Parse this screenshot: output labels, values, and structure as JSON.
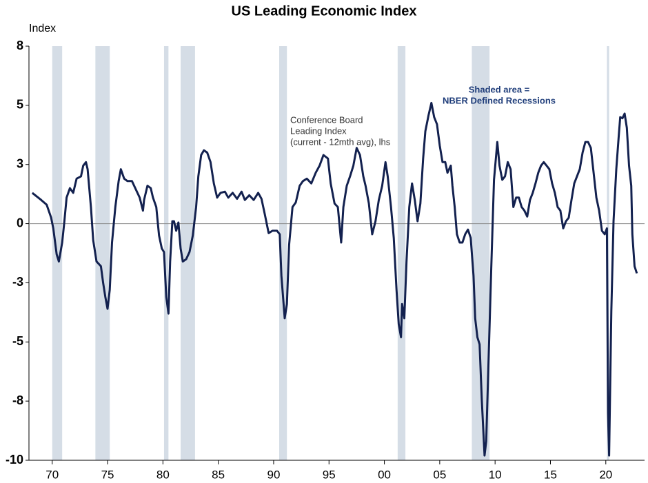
{
  "chart_data": {
    "type": "line",
    "title": "US Leading Economic Index",
    "y_label": "Index",
    "annotations": {
      "series_note": [
        "Conference Board",
        "Leading Index",
        "(current - 12mth avg), lhs"
      ],
      "shading_note": [
        "Shaded area =",
        "NBER Defined Recessions"
      ]
    },
    "xlim": [
      1967.9,
      2023.5
    ],
    "xticks": [
      {
        "value": 1970,
        "label": "70"
      },
      {
        "value": 1975,
        "label": "75"
      },
      {
        "value": 1980,
        "label": "80"
      },
      {
        "value": 1985,
        "label": "85"
      },
      {
        "value": 1990,
        "label": "90"
      },
      {
        "value": 1995,
        "label": "95"
      },
      {
        "value": 2000,
        "label": "00"
      },
      {
        "value": 2005,
        "label": "05"
      },
      {
        "value": 2010,
        "label": "10"
      },
      {
        "value": 2015,
        "label": "15"
      },
      {
        "value": 2020,
        "label": "20"
      }
    ],
    "ylim": [
      -10,
      7.5
    ],
    "yticks": [
      {
        "value": 7.5,
        "label": "8"
      },
      5,
      {
        "value": 2.5,
        "label": "3"
      },
      0,
      {
        "value": -2.5,
        "label": "-3"
      },
      -5,
      {
        "value": -7.5,
        "label": "-8"
      },
      -10
    ],
    "zero_line": true,
    "recession_color": "#d5dde6",
    "recessions": [
      [
        1970.0,
        1970.9
      ],
      [
        1973.9,
        1975.2
      ],
      [
        1980.1,
        1980.5
      ],
      [
        1981.6,
        1982.9
      ],
      [
        1990.5,
        1991.2
      ],
      [
        2001.2,
        2001.9
      ],
      [
        2007.9,
        2009.5
      ],
      [
        2020.1,
        2020.3
      ]
    ],
    "series": [
      {
        "name": "Conference Board Leading Index",
        "color": "#13214f",
        "x": [
          1968.2,
          1969.0,
          1969.5,
          1969.9,
          1970.1,
          1970.4,
          1970.6,
          1970.9,
          1971.1,
          1971.3,
          1971.6,
          1971.9,
          1972.2,
          1972.6,
          1972.8,
          1973.05,
          1973.2,
          1973.5,
          1973.7,
          1974.0,
          1974.4,
          1974.6,
          1974.8,
          1975.0,
          1975.2,
          1975.4,
          1975.7,
          1976.0,
          1976.2,
          1976.5,
          1976.8,
          1977.2,
          1977.6,
          1977.9,
          1978.2,
          1978.3,
          1978.6,
          1978.9,
          1979.1,
          1979.4,
          1979.65,
          1979.9,
          1980.1,
          1980.3,
          1980.5,
          1980.65,
          1980.85,
          1981.0,
          1981.2,
          1981.4,
          1981.6,
          1981.8,
          1982.1,
          1982.4,
          1982.7,
          1983.0,
          1983.2,
          1983.45,
          1983.7,
          1984.0,
          1984.3,
          1984.6,
          1984.9,
          1985.2,
          1985.6,
          1985.9,
          1986.3,
          1986.7,
          1987.1,
          1987.4,
          1987.8,
          1988.2,
          1988.6,
          1988.9,
          1989.2,
          1989.55,
          1989.9,
          1990.3,
          1990.55,
          1990.7,
          1991.0,
          1991.2,
          1991.4,
          1991.7,
          1992.0,
          1992.35,
          1992.65,
          1993.0,
          1993.4,
          1993.8,
          1994.15,
          1994.5,
          1994.9,
          1995.15,
          1995.5,
          1995.8,
          1996.1,
          1996.3,
          1996.6,
          1996.9,
          1997.2,
          1997.5,
          1997.8,
          1998.1,
          1998.3,
          1998.6,
          1998.9,
          1999.2,
          1999.5,
          1999.8,
          2000.1,
          2000.3,
          2000.6,
          2000.85,
          2001.1,
          2001.3,
          2001.5,
          2001.6,
          2001.8,
          2002.0,
          2002.25,
          2002.5,
          2002.75,
          2003.0,
          2003.25,
          2003.5,
          2003.7,
          2004.0,
          2004.25,
          2004.5,
          2004.75,
          2005.0,
          2005.25,
          2005.5,
          2005.7,
          2006.0,
          2006.15,
          2006.35,
          2006.55,
          2006.8,
          2007.05,
          2007.3,
          2007.55,
          2007.8,
          2008.05,
          2008.2,
          2008.4,
          2008.6,
          2008.8,
          2009.05,
          2009.2,
          2009.4,
          2009.65,
          2009.9,
          2010.2,
          2010.4,
          2010.65,
          2010.9,
          2011.15,
          2011.4,
          2011.65,
          2011.9,
          2012.15,
          2012.4,
          2012.65,
          2012.9,
          2013.15,
          2013.4,
          2013.65,
          2013.9,
          2014.15,
          2014.4,
          2014.65,
          2014.9,
          2015.15,
          2015.4,
          2015.65,
          2015.9,
          2016.15,
          2016.4,
          2016.65,
          2016.9,
          2017.15,
          2017.4,
          2017.65,
          2017.9,
          2018.15,
          2018.4,
          2018.65,
          2018.9,
          2019.15,
          2019.4,
          2019.65,
          2019.9,
          2020.1,
          2020.2,
          2020.3,
          2020.5,
          2020.7,
          2020.95,
          2021.15,
          2021.3,
          2021.5,
          2021.7,
          2021.9,
          2022.1,
          2022.3,
          2022.4,
          2022.6,
          2022.8
        ],
        "values": [
          1.3,
          1.0,
          0.8,
          0.26,
          -0.2,
          -1.3,
          -1.6,
          -0.8,
          0.1,
          1.1,
          1.5,
          1.3,
          1.9,
          2.0,
          2.45,
          2.6,
          2.3,
          0.7,
          -0.7,
          -1.6,
          -1.8,
          -2.5,
          -3.1,
          -3.6,
          -2.8,
          -0.8,
          0.7,
          1.8,
          2.3,
          1.9,
          1.8,
          1.8,
          1.4,
          1.1,
          0.55,
          1.0,
          1.6,
          1.5,
          1.1,
          0.7,
          -0.5,
          -1.05,
          -1.2,
          -3.1,
          -3.8,
          -1.6,
          0.1,
          0.1,
          -0.3,
          0.05,
          -1.05,
          -1.6,
          -1.5,
          -1.2,
          -0.5,
          0.7,
          2.0,
          2.9,
          3.1,
          3.0,
          2.6,
          1.7,
          1.1,
          1.3,
          1.35,
          1.1,
          1.3,
          1.05,
          1.35,
          1.0,
          1.2,
          1.0,
          1.3,
          1.05,
          0.4,
          -0.4,
          -0.3,
          -0.3,
          -0.45,
          -2.2,
          -4.0,
          -3.4,
          -0.9,
          0.7,
          0.9,
          1.6,
          1.8,
          1.9,
          1.7,
          2.15,
          2.45,
          2.9,
          2.75,
          1.7,
          0.85,
          0.7,
          -0.8,
          0.7,
          1.6,
          2.0,
          2.45,
          3.2,
          2.9,
          2.0,
          1.6,
          0.85,
          -0.45,
          0.1,
          1.0,
          1.6,
          2.6,
          2.0,
          0.7,
          -0.6,
          -2.8,
          -4.25,
          -4.8,
          -3.4,
          -4.0,
          -1.6,
          0.7,
          1.7,
          1.0,
          0.1,
          0.85,
          2.75,
          3.9,
          4.6,
          5.1,
          4.5,
          4.2,
          3.3,
          2.6,
          2.6,
          2.15,
          2.45,
          1.6,
          0.7,
          -0.45,
          -0.8,
          -0.8,
          -0.45,
          -0.25,
          -0.6,
          -2.2,
          -4.0,
          -4.8,
          -5.1,
          -7.45,
          -9.8,
          -9.2,
          -6.0,
          -1.9,
          1.85,
          3.45,
          2.45,
          1.85,
          2.0,
          2.6,
          2.3,
          0.7,
          1.1,
          1.1,
          0.7,
          0.55,
          0.3,
          1.0,
          1.3,
          1.7,
          2.15,
          2.45,
          2.6,
          2.45,
          2.3,
          1.7,
          1.3,
          0.7,
          0.55,
          -0.2,
          0.1,
          0.25,
          1.0,
          1.7,
          2.0,
          2.3,
          3.0,
          3.45,
          3.45,
          3.2,
          2.15,
          1.1,
          0.55,
          -0.3,
          -0.45,
          -0.2,
          -8.0,
          -9.8,
          -3.7,
          0.1,
          2.3,
          3.6,
          4.5,
          4.45,
          4.65,
          4.05,
          2.45,
          1.6,
          -0.45,
          -1.8,
          -2.1
        ]
      }
    ]
  }
}
